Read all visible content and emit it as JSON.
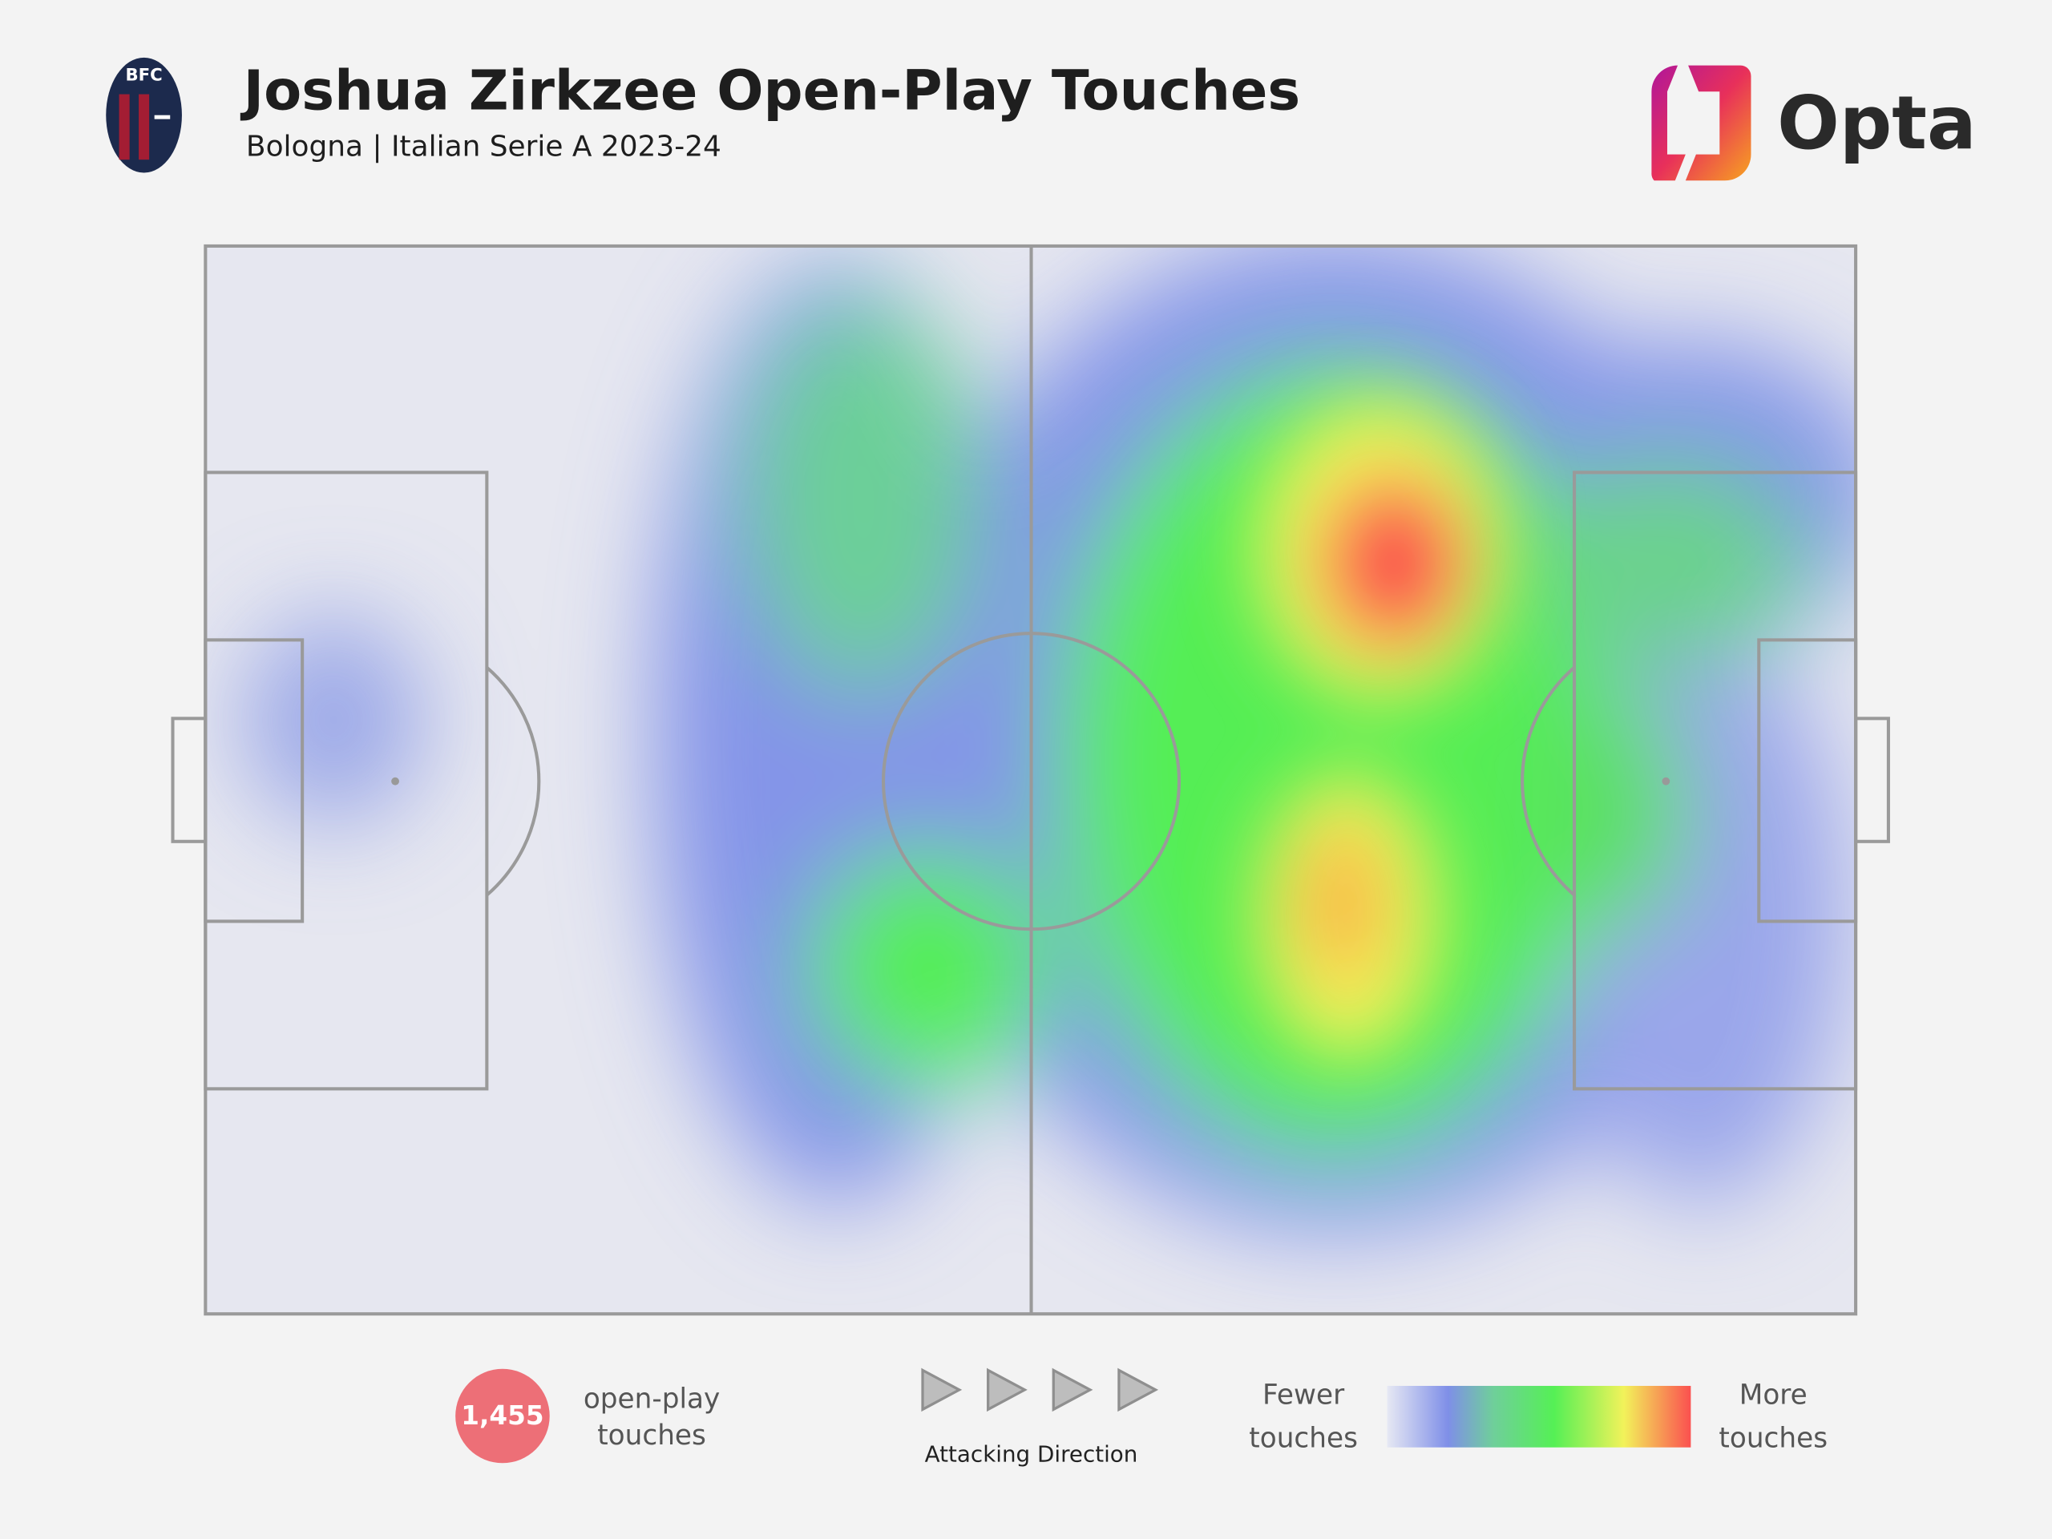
{
  "header": {
    "title": "Joshua Zirkzee Open-Play Touches",
    "subtitle": "Bologna | Italian Serie A 2023-24",
    "badge_text": "BFC",
    "logo_text": "Opta"
  },
  "footer": {
    "touches_count": "1,455",
    "touches_label": [
      "open-play",
      "touches"
    ],
    "direction_label": "Attacking Direction",
    "legend_low": [
      "Fewer",
      "touches"
    ],
    "legend_high": [
      "More",
      "touches"
    ]
  }
}
